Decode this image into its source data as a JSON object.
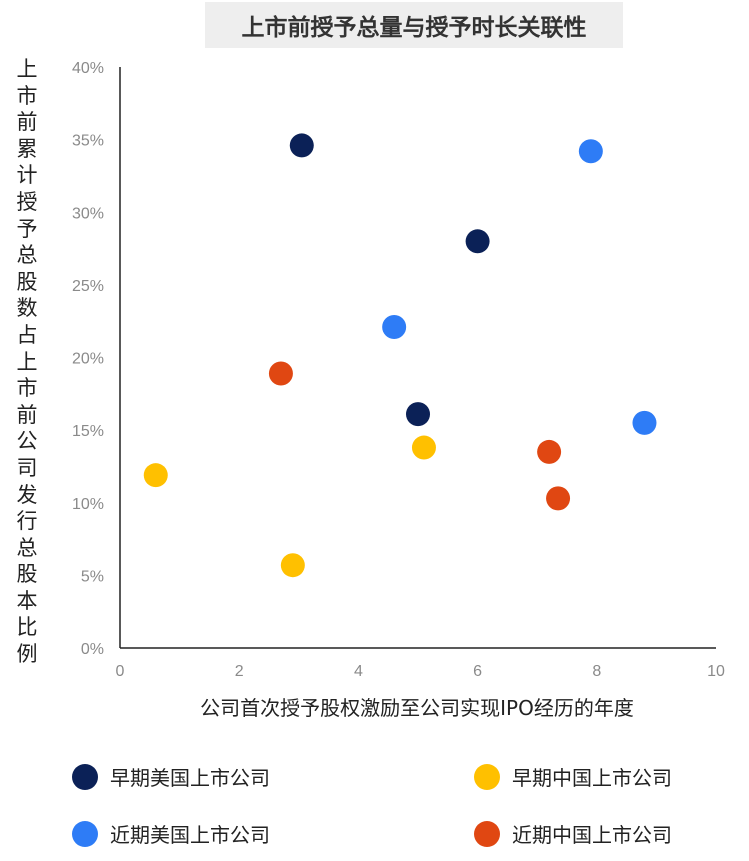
{
  "chart_data": {
    "type": "scatter",
    "title": "上市前授予总量与授予时长关联性",
    "xlabel": "公司首次授予股权激励至公司实现IPO经历的年度",
    "ylabel": "上市前累计授予总股数占上市前公司发行总股本比例",
    "xlim": [
      0,
      10
    ],
    "ylim": [
      0,
      40
    ],
    "xticks": [
      "0",
      "2",
      "4",
      "6",
      "8",
      "10"
    ],
    "yticks": [
      "0%",
      "5%",
      "10%",
      "15%",
      "20%",
      "25%",
      "30%",
      "35%",
      "40%"
    ],
    "grid": false,
    "legend_position": "bottom",
    "series": [
      {
        "name": "早期美国上市公司",
        "color": "#0b2157",
        "points": [
          [
            3.05,
            34.6
          ],
          [
            6.0,
            28.0
          ],
          [
            5.0,
            16.1
          ]
        ]
      },
      {
        "name": "早期中国上市公司",
        "color": "#ffc000",
        "points": [
          [
            0.6,
            11.9
          ],
          [
            2.9,
            5.7
          ],
          [
            5.1,
            13.8
          ]
        ]
      },
      {
        "name": "近期美国上市公司",
        "color": "#2e7cf6",
        "points": [
          [
            7.9,
            34.2
          ],
          [
            4.6,
            22.1
          ],
          [
            8.8,
            15.5
          ]
        ]
      },
      {
        "name": "近期中国上市公司",
        "color": "#e04712",
        "points": [
          [
            2.7,
            18.9
          ],
          [
            7.2,
            13.5
          ],
          [
            7.35,
            10.3
          ]
        ]
      }
    ]
  }
}
